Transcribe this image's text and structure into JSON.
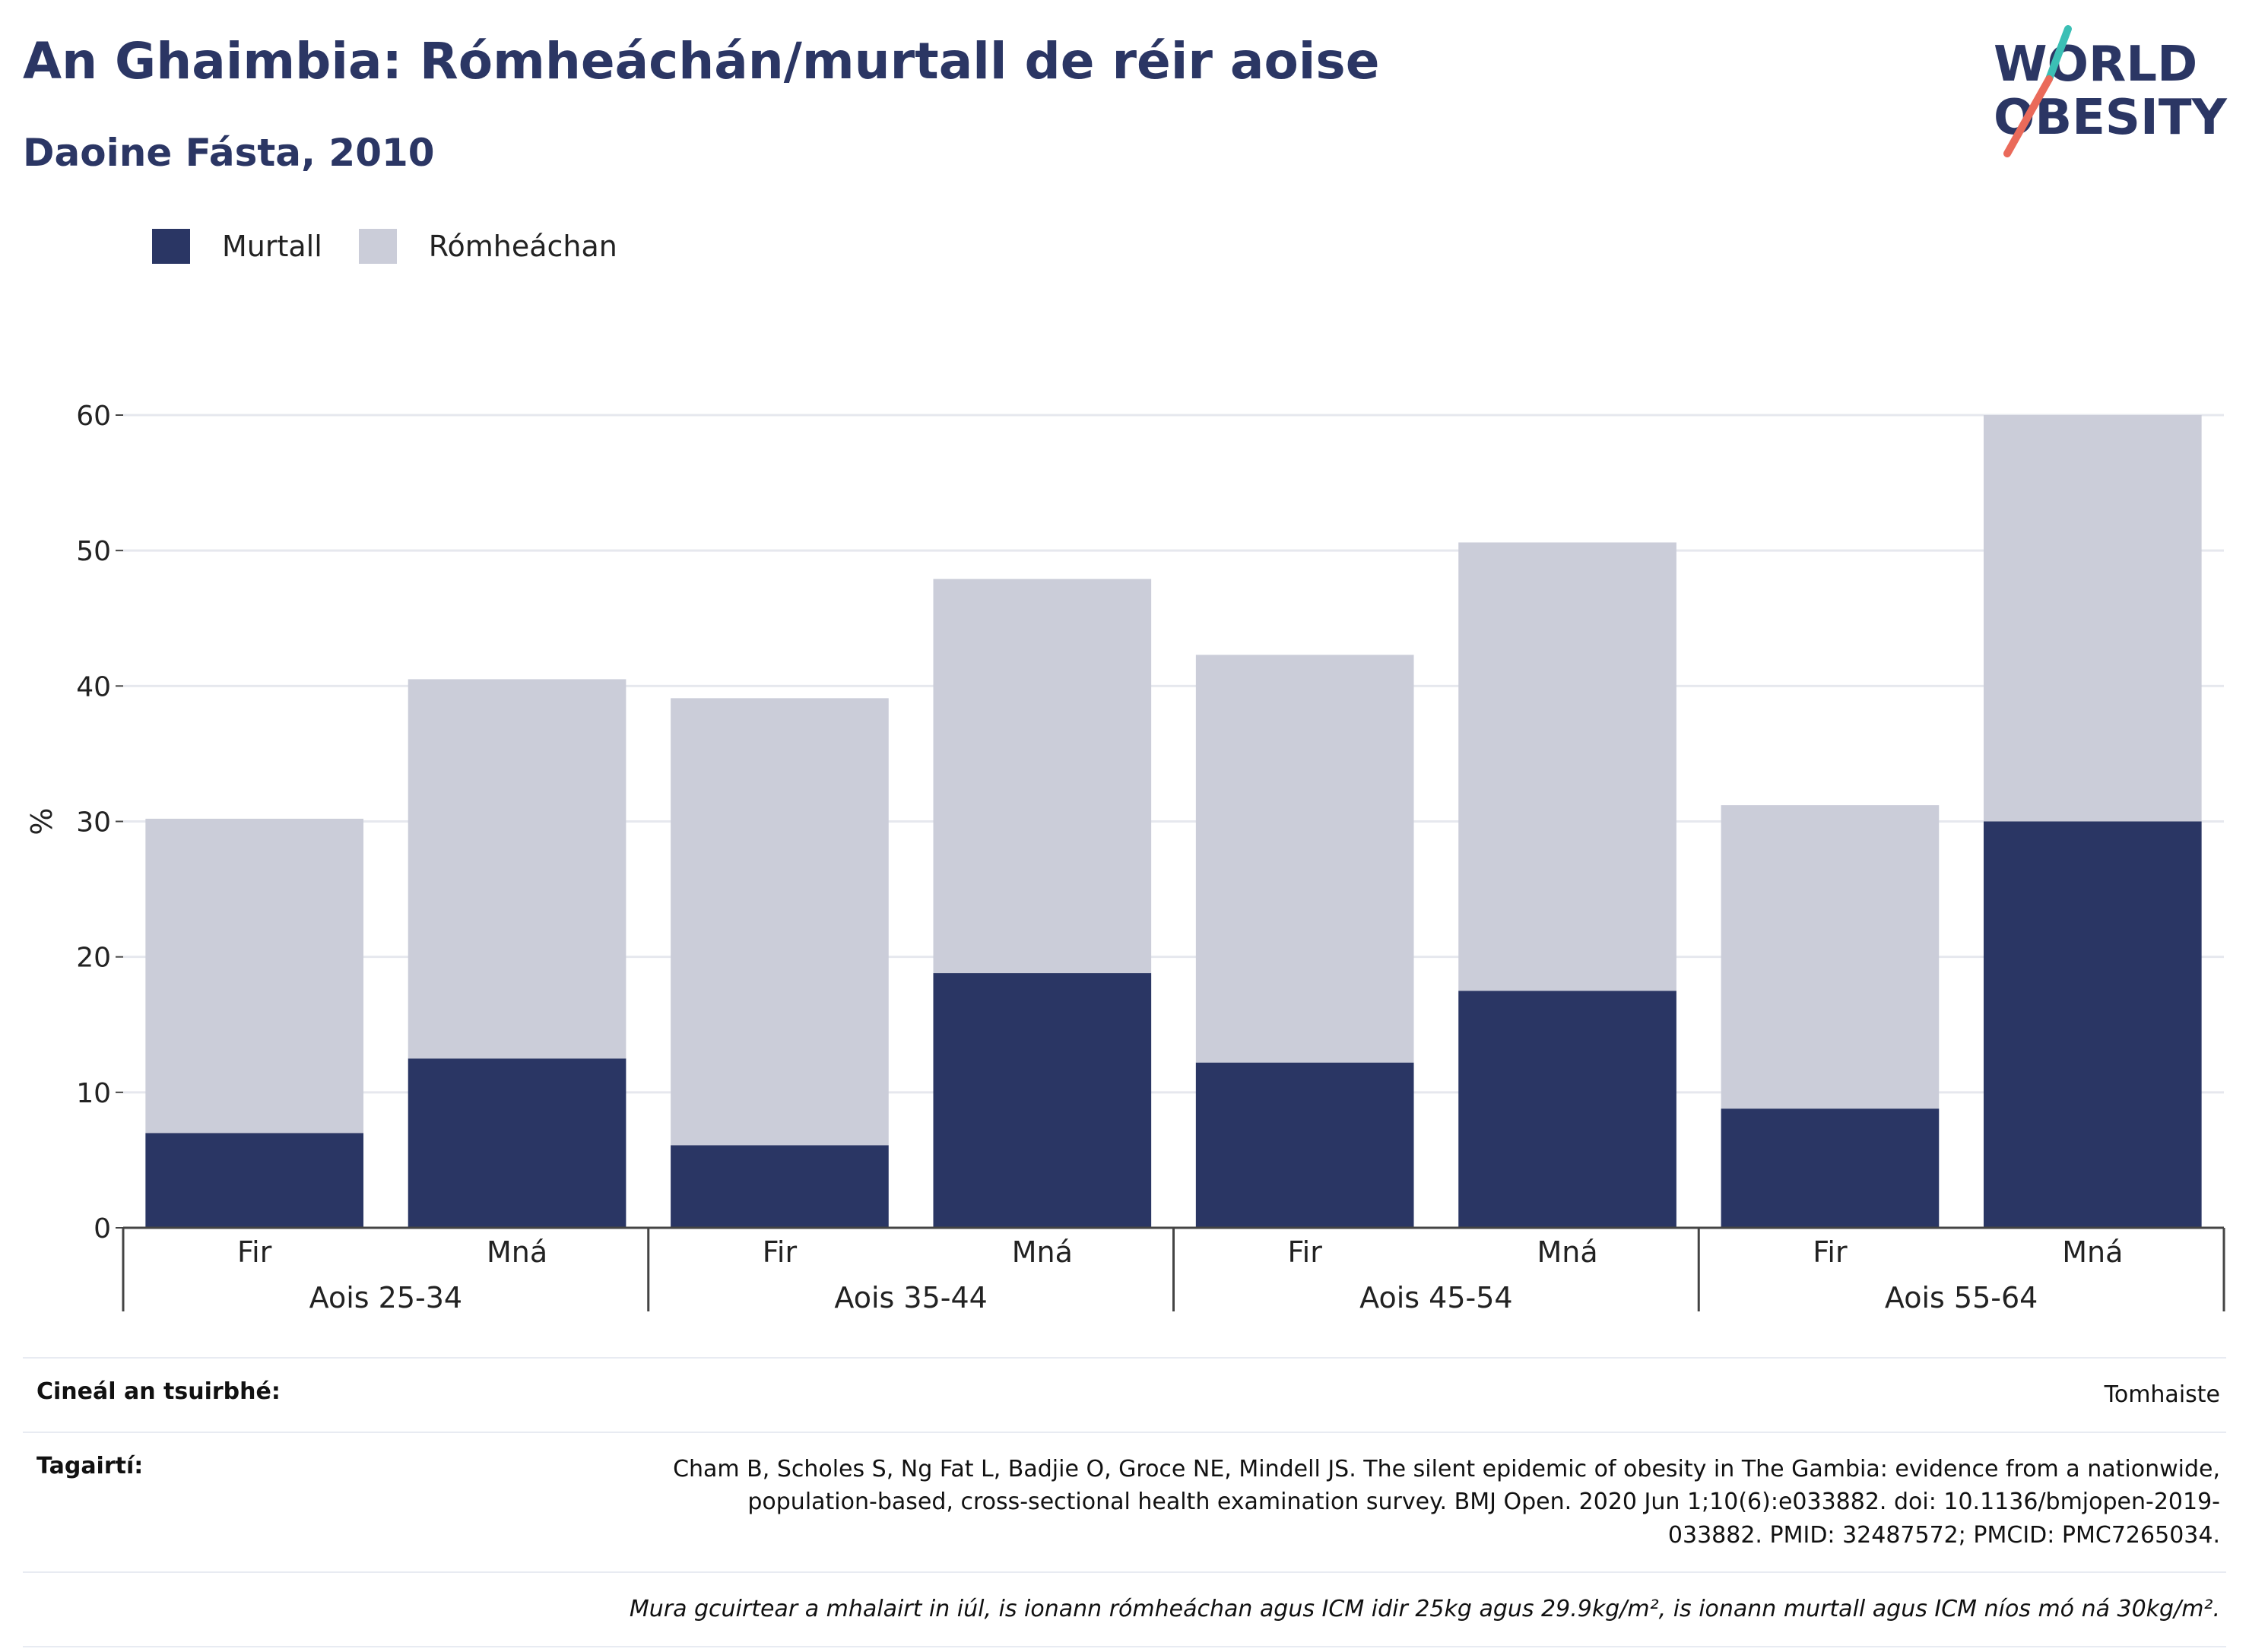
{
  "title": "An Ghaimbia: Rómheáchán/murtall de réir aoise",
  "subtitle": "Daoine Fásta, 2010",
  "logo": {
    "line1": "WORLD",
    "line2": "OBESITY"
  },
  "legend": [
    {
      "name": "Murtall",
      "color": "#2a3664"
    },
    {
      "name": "Rómheáchan",
      "color": "#cbcdd9"
    }
  ],
  "chart_data": {
    "type": "bar",
    "stacked": true,
    "ylabel": "%",
    "ylim": [
      0,
      60
    ],
    "yticks": [
      0,
      10,
      20,
      30,
      40,
      50,
      60
    ],
    "grid": true,
    "legend_position": "top-left",
    "groups": [
      {
        "label": "Aois 25-34",
        "categories": [
          "Fir",
          "Mná"
        ]
      },
      {
        "label": "Aois 35-44",
        "categories": [
          "Fir",
          "Mná"
        ]
      },
      {
        "label": "Aois 45-54",
        "categories": [
          "Fir",
          "Mná"
        ]
      },
      {
        "label": "Aois 55-64",
        "categories": [
          "Fir",
          "Mná"
        ]
      }
    ],
    "series": [
      {
        "name": "Murtall",
        "color": "#2a3664",
        "values": [
          7.0,
          12.5,
          6.1,
          18.8,
          12.2,
          17.5,
          8.8,
          30.0
        ]
      },
      {
        "name": "Rómheáchan",
        "color": "#cbcdd9",
        "values": [
          23.2,
          28.0,
          33.0,
          29.1,
          30.1,
          33.1,
          22.4,
          30.0
        ]
      }
    ]
  },
  "footer": {
    "survey_type_label": "Cineál an tsuirbhé:",
    "survey_type_value": "Tomhaiste",
    "references_label": "Tagairtí:",
    "references_lines": [
      "Cham B, Scholes S, Ng Fat L, Badjie O, Groce NE, Mindell JS. The silent epidemic of obesity in The Gambia: evidence from a nationwide,",
      "population-based, cross-sectional health examination survey. BMJ Open. 2020 Jun 1;10(6):e033882. doi: 10.1136/bmjopen-2019-",
      "033882. PMID: 32487572; PMCID: PMC7265034."
    ],
    "note": "Mura gcuirtear a mhalairt in iúl, is ionann rómheáchan agus ICM idir 25kg agus 29.9kg/m², is ionann murtall agus ICM níos mó ná 30kg/m²."
  }
}
